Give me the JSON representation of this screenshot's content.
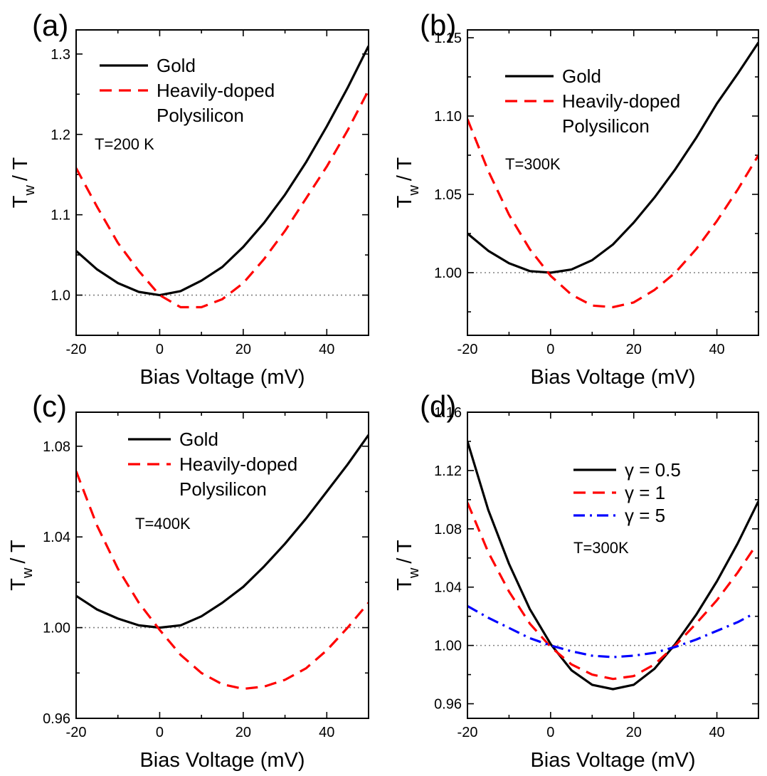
{
  "colors": {
    "gold": "#000000",
    "polysilicon": "#ff0000",
    "gamma5": "#0000ff",
    "reference": "#808080"
  },
  "chart_data": [
    {
      "panel": "(a)",
      "type": "line",
      "xlabel": "Bias Voltage (mV)",
      "ylabel_main": "T",
      "ylabel_sub": "w",
      "ylabel_tail": "/ T",
      "xlim": [
        -20,
        50
      ],
      "ylim": [
        0.95,
        1.33
      ],
      "xticks": [
        -20,
        0,
        20,
        40
      ],
      "xtick_labels": [
        "-20",
        "0",
        "20",
        "40"
      ],
      "yticks": [
        1.0,
        1.1,
        1.2,
        1.3
      ],
      "ytick_labels": [
        "1.0",
        "1.1",
        "1.2",
        "1.3"
      ],
      "reference_line": 1.0,
      "annotation": "T=200 K",
      "legend_position": "top-left",
      "series": [
        {
          "name": "Gold",
          "color": "#000000",
          "dash": "solid",
          "x": [
            -20,
            -15,
            -10,
            -5,
            0,
            5,
            10,
            15,
            20,
            25,
            30,
            35,
            40,
            45,
            50
          ],
          "y": [
            1.055,
            1.032,
            1.015,
            1.004,
            1.0,
            1.005,
            1.018,
            1.035,
            1.06,
            1.09,
            1.125,
            1.165,
            1.21,
            1.258,
            1.31
          ]
        },
        {
          "name": "Heavily-doped",
          "name_line2": "Polysilicon",
          "color": "#ff0000",
          "dash": "dashed",
          "x": [
            -20,
            -15,
            -10,
            -5,
            0,
            5,
            10,
            15,
            20,
            25,
            30,
            35,
            40,
            45,
            50
          ],
          "y": [
            1.158,
            1.11,
            1.065,
            1.03,
            1.0,
            0.985,
            0.985,
            0.995,
            1.015,
            1.045,
            1.08,
            1.12,
            1.16,
            1.205,
            1.255
          ]
        }
      ]
    },
    {
      "panel": "(b)",
      "type": "line",
      "xlabel": "Bias Voltage (mV)",
      "ylabel_main": "T",
      "ylabel_sub": "w",
      "ylabel_tail": "/ T",
      "xlim": [
        -20,
        50
      ],
      "ylim": [
        0.96,
        1.155
      ],
      "xticks": [
        -20,
        0,
        20,
        40
      ],
      "xtick_labels": [
        "-20",
        "0",
        "20",
        "40"
      ],
      "yticks": [
        1.0,
        1.05,
        1.1,
        1.15
      ],
      "ytick_labels": [
        "1.00",
        "1.05",
        "1.10",
        "1.15"
      ],
      "reference_line": 1.0,
      "annotation": "T=300K",
      "legend_position": "top-center",
      "series": [
        {
          "name": "Gold",
          "color": "#000000",
          "dash": "solid",
          "x": [
            -20,
            -15,
            -10,
            -5,
            0,
            5,
            10,
            15,
            20,
            25,
            30,
            35,
            40,
            45,
            50
          ],
          "y": [
            1.025,
            1.014,
            1.006,
            1.001,
            1.0,
            1.002,
            1.008,
            1.018,
            1.032,
            1.048,
            1.066,
            1.086,
            1.108,
            1.127,
            1.147
          ]
        },
        {
          "name": "Heavily-doped",
          "name_line2": "Polysilicon",
          "color": "#ff0000",
          "dash": "dashed",
          "x": [
            -20,
            -15,
            -10,
            -5,
            0,
            5,
            10,
            15,
            20,
            25,
            30,
            35,
            40,
            45,
            50
          ],
          "y": [
            1.098,
            1.065,
            1.037,
            1.015,
            0.998,
            0.986,
            0.979,
            0.978,
            0.981,
            0.989,
            1.0,
            1.015,
            1.033,
            1.053,
            1.075
          ]
        }
      ]
    },
    {
      "panel": "(c)",
      "type": "line",
      "xlabel": "Bias Voltage (mV)",
      "ylabel_main": "T",
      "ylabel_sub": "w",
      "ylabel_tail": "/ T",
      "xlim": [
        -20,
        50
      ],
      "ylim": [
        0.96,
        1.095
      ],
      "xticks": [
        -20,
        0,
        20,
        40
      ],
      "xtick_labels": [
        "-20",
        "0",
        "20",
        "40"
      ],
      "yticks": [
        0.96,
        1.0,
        1.04,
        1.08
      ],
      "ytick_labels": [
        "0.96",
        "1.00",
        "1.04",
        "1.08"
      ],
      "reference_line": 1.0,
      "annotation": "T=400K",
      "legend_position": "top-center",
      "series": [
        {
          "name": "Gold",
          "color": "#000000",
          "dash": "solid",
          "x": [
            -20,
            -15,
            -10,
            -5,
            0,
            5,
            10,
            15,
            20,
            25,
            30,
            35,
            40,
            45,
            50
          ],
          "y": [
            1.014,
            1.008,
            1.004,
            1.001,
            1.0,
            1.001,
            1.005,
            1.011,
            1.018,
            1.027,
            1.037,
            1.048,
            1.06,
            1.072,
            1.085
          ]
        },
        {
          "name": "Heavily-doped",
          "name_line2": "Polysilicon",
          "color": "#ff0000",
          "dash": "dashed",
          "x": [
            -20,
            -15,
            -10,
            -5,
            0,
            5,
            10,
            15,
            20,
            25,
            30,
            35,
            40,
            45,
            50
          ],
          "y": [
            1.069,
            1.045,
            1.026,
            1.011,
            0.999,
            0.988,
            0.98,
            0.975,
            0.973,
            0.974,
            0.977,
            0.982,
            0.99,
            1.0,
            1.011
          ]
        }
      ]
    },
    {
      "panel": "(d)",
      "type": "line",
      "xlabel": "Bias Voltage (mV)",
      "ylabel_main": "T",
      "ylabel_sub": "w",
      "ylabel_tail": "/ T",
      "xlim": [
        -20,
        50
      ],
      "ylim": [
        0.95,
        1.16
      ],
      "xticks": [
        -20,
        0,
        20,
        40
      ],
      "xtick_labels": [
        "-20",
        "0",
        "20",
        "40"
      ],
      "yticks": [
        0.96,
        1.0,
        1.04,
        1.08,
        1.12,
        1.16
      ],
      "ytick_labels": [
        "0.96",
        "1.00",
        "1.04",
        "1.08",
        "1.12",
        "1.16"
      ],
      "reference_line": 1.0,
      "annotation": "T=300K",
      "legend_position": "top-right",
      "series": [
        {
          "name": "γ = 0.5",
          "color": "#000000",
          "dash": "solid",
          "x": [
            -20,
            -15,
            -10,
            -5,
            0,
            5,
            10,
            15,
            20,
            25,
            30,
            35,
            40,
            45,
            50
          ],
          "y": [
            1.14,
            1.093,
            1.056,
            1.025,
            1.001,
            0.983,
            0.973,
            0.97,
            0.973,
            0.984,
            1.001,
            1.021,
            1.044,
            1.07,
            1.099
          ]
        },
        {
          "name": "γ = 1",
          "color": "#ff0000",
          "dash": "dashed",
          "x": [
            -20,
            -15,
            -10,
            -5,
            0,
            5,
            10,
            15,
            20,
            25,
            30,
            35,
            40,
            45,
            49
          ],
          "y": [
            1.098,
            1.064,
            1.037,
            1.015,
            0.999,
            0.987,
            0.98,
            0.977,
            0.979,
            0.987,
            1.0,
            1.015,
            1.031,
            1.05,
            1.067
          ]
        },
        {
          "name": "γ = 5",
          "color": "#0000ff",
          "dash": "dashdot",
          "x": [
            -20,
            -15,
            -10,
            -5,
            0,
            5,
            10,
            15,
            20,
            25,
            30,
            35,
            40,
            45,
            49
          ],
          "y": [
            1.027,
            1.019,
            1.012,
            1.005,
            1.0,
            0.996,
            0.993,
            0.992,
            0.993,
            0.995,
            0.999,
            1.004,
            1.01,
            1.016,
            1.022
          ]
        }
      ]
    }
  ]
}
